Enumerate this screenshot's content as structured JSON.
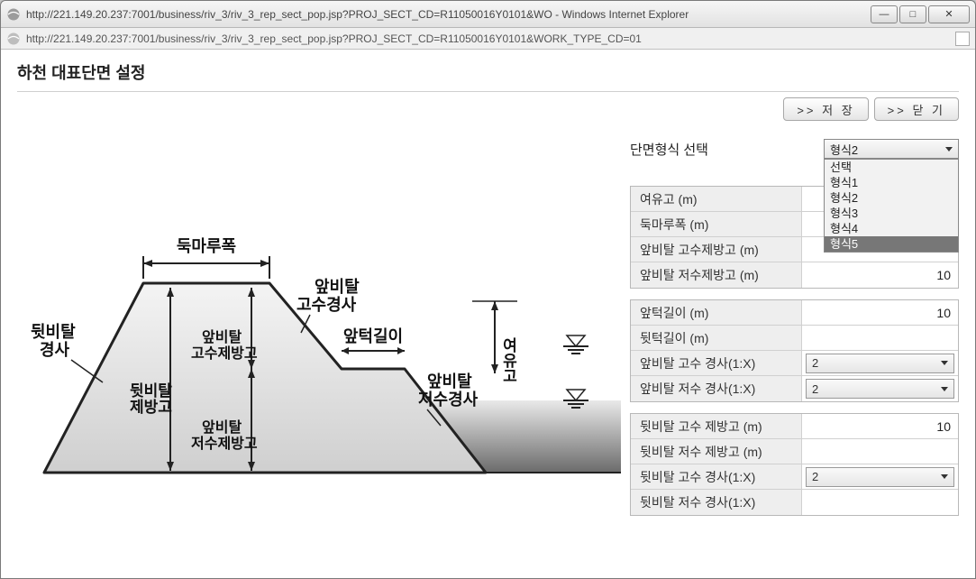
{
  "window": {
    "title": "http://221.149.20.237:7001/business/riv_3/riv_3_rep_sect_pop.jsp?PROJ_SECT_CD=R11050016Y0101&WO - Windows Internet Explorer",
    "url": "http://221.149.20.237:7001/business/riv_3/riv_3_rep_sect_pop.jsp?PROJ_SECT_CD=R11050016Y0101&WORK_TYPE_CD=01",
    "min_glyph": "—",
    "max_glyph": "□",
    "close_glyph": "✕"
  },
  "page": {
    "title": "하천 대표단면 설정",
    "buttons": {
      "save": ">> 저 장",
      "close": ">> 닫 기"
    }
  },
  "selector": {
    "label": "단면형식 선택",
    "selected": "형식2",
    "open": true,
    "options": [
      "선택",
      "형식1",
      "형식2",
      "형식3",
      "형식4",
      "형식5"
    ],
    "highlighted_index": 5
  },
  "group1": [
    {
      "label": "여유고 (m)",
      "value": ""
    },
    {
      "label": "둑마루폭 (m)",
      "value": ""
    },
    {
      "label": "앞비탈 고수제방고 (m)",
      "value": ""
    },
    {
      "label": "앞비탈 저수제방고 (m)",
      "value": "10"
    }
  ],
  "group2": [
    {
      "label": "앞턱길이 (m)",
      "type": "val",
      "value": "10"
    },
    {
      "label": "뒷턱길이 (m)",
      "type": "val",
      "value": ""
    },
    {
      "label": "앞비탈 고수 경사(1:X)",
      "type": "select",
      "value": "2"
    },
    {
      "label": "앞비탈 저수 경사(1:X)",
      "type": "select",
      "value": "2"
    }
  ],
  "group3": [
    {
      "label": "뒷비탈 고수 제방고 (m)",
      "type": "val",
      "value": "10"
    },
    {
      "label": "뒷비탈 저수 제방고 (m)",
      "type": "val",
      "value": ""
    },
    {
      "label": "뒷비탈 고수 경사(1:X)",
      "type": "select",
      "value": "2"
    },
    {
      "label": "뒷비탈 저수 경사(1:X)",
      "type": "val",
      "value": ""
    }
  ],
  "diagram": {
    "labels": {
      "crest_width": "둑마루폭",
      "back_slope_title": "뒷비탈",
      "back_slope_sub": "경사",
      "front_slope_high_title": "앞비탈",
      "front_slope_high_sub": "고수경사",
      "front_berm": "앞턱길이",
      "back_levee_title": "뒷비탈",
      "back_levee_sub": "제방고",
      "front_high_levee_title": "앞비탈",
      "front_high_levee_sub": "고수제방고",
      "front_low_levee_title": "앞비탈",
      "front_low_levee_sub": "저수제방고",
      "front_slope_low_title": "앞비탈",
      "front_slope_low_sub": "저수경사",
      "freeboard": "여유고"
    },
    "colors": {
      "fill_light": "#f4f4f4",
      "fill_dark": "#cfcfcf",
      "stroke": "#222222",
      "water_top": "#e9e9e9",
      "water_bottom": "#6b6b6b",
      "text": "#111111"
    }
  }
}
